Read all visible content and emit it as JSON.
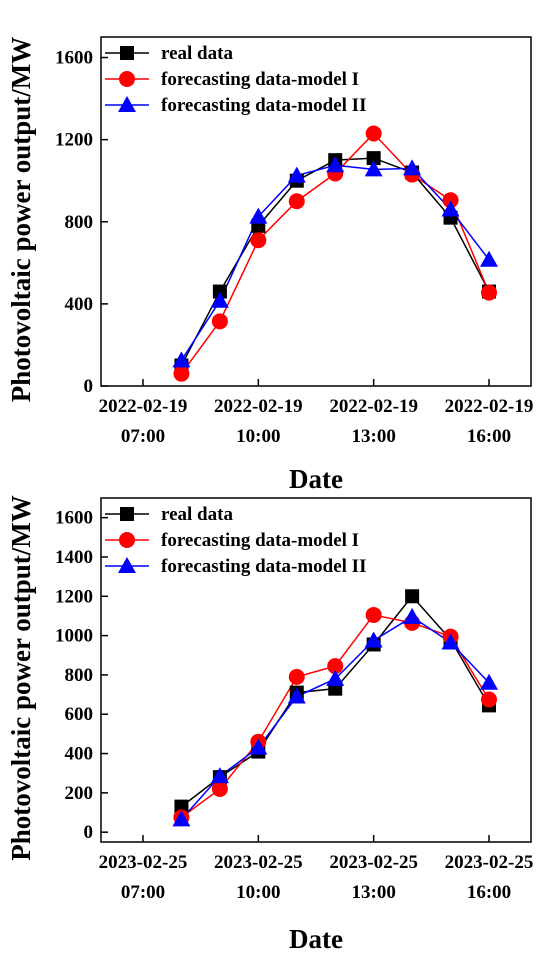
{
  "legend_entries": [
    "real data",
    "forecasting data-model I",
    "forecasting data-model II"
  ],
  "colors": {
    "real": "#000000",
    "model1": "#ff0000",
    "model2": "#0000ff"
  },
  "chart_data": [
    {
      "type": "line",
      "xlabel": "Date",
      "ylabel": "Photovoltaic power output/MW",
      "x": [
        "07:00",
        "08:00",
        "09:00",
        "10:00",
        "11:00",
        "12:00",
        "13:00",
        "14:00",
        "15:00",
        "16:00"
      ],
      "xticks": [
        {
          "x": "07:00",
          "date": "2022-02-19",
          "time": "07:00"
        },
        {
          "x": "10:00",
          "date": "2022-02-19",
          "time": "10:00"
        },
        {
          "x": "13:00",
          "date": "2022-02-19",
          "time": "13:00"
        },
        {
          "x": "16:00",
          "date": "2022-02-19",
          "time": "16:00"
        }
      ],
      "ylim": [
        0,
        1700
      ],
      "yticks": [
        0,
        400,
        800,
        1200,
        1600
      ],
      "legend_position": "top-left",
      "grid": false,
      "series": [
        {
          "name": "real data",
          "marker": "square",
          "color": "#000000",
          "points": [
            [
              "08:00",
              100
            ],
            [
              "09:00",
              460
            ],
            [
              "10:00",
              780
            ],
            [
              "11:00",
              1000
            ],
            [
              "12:00",
              1100
            ],
            [
              "13:00",
              1110
            ],
            [
              "14:00",
              1040
            ],
            [
              "15:00",
              820
            ],
            [
              "16:00",
              460
            ]
          ]
        },
        {
          "name": "forecasting data-model I",
          "marker": "circle",
          "color": "#ff0000",
          "points": [
            [
              "08:00",
              60
            ],
            [
              "09:00",
              315
            ],
            [
              "10:00",
              710
            ],
            [
              "11:00",
              900
            ],
            [
              "12:00",
              1035
            ],
            [
              "13:00",
              1230
            ],
            [
              "14:00",
              1030
            ],
            [
              "15:00",
              905
            ],
            [
              "16:00",
              455
            ]
          ]
        },
        {
          "name": "forecasting data-model II",
          "marker": "triangle",
          "color": "#0000ff",
          "points": [
            [
              "08:00",
              125
            ],
            [
              "09:00",
              415
            ],
            [
              "10:00",
              825
            ],
            [
              "11:00",
              1025
            ],
            [
              "12:00",
              1075
            ],
            [
              "13:00",
              1055
            ],
            [
              "14:00",
              1060
            ],
            [
              "15:00",
              860
            ],
            [
              "16:00",
              615
            ]
          ]
        }
      ]
    },
    {
      "type": "line",
      "xlabel": "Date",
      "ylabel": "Photovoltaic power output/MW",
      "x": [
        "07:00",
        "08:00",
        "09:00",
        "10:00",
        "11:00",
        "12:00",
        "13:00",
        "14:00",
        "15:00",
        "16:00"
      ],
      "xticks": [
        {
          "x": "07:00",
          "date": "2023-02-25",
          "time": "07:00"
        },
        {
          "x": "10:00",
          "date": "2023-02-25",
          "time": "10:00"
        },
        {
          "x": "13:00",
          "date": "2023-02-25",
          "time": "13:00"
        },
        {
          "x": "16:00",
          "date": "2023-02-25",
          "time": "16:00"
        }
      ],
      "ylim": [
        -50,
        1700
      ],
      "yticks": [
        0,
        200,
        400,
        600,
        800,
        1000,
        1200,
        1400,
        1600
      ],
      "legend_position": "top-left",
      "grid": false,
      "series": [
        {
          "name": "real data",
          "marker": "square",
          "color": "#000000",
          "points": [
            [
              "08:00",
              130
            ],
            [
              "09:00",
              280
            ],
            [
              "10:00",
              410
            ],
            [
              "11:00",
              710
            ],
            [
              "12:00",
              730
            ],
            [
              "13:00",
              955
            ],
            [
              "14:00",
              1200
            ],
            [
              "15:00",
              980
            ],
            [
              "16:00",
              645
            ]
          ]
        },
        {
          "name": "forecasting data-model I",
          "marker": "circle",
          "color": "#ff0000",
          "points": [
            [
              "08:00",
              75
            ],
            [
              "09:00",
              220
            ],
            [
              "10:00",
              460
            ],
            [
              "11:00",
              790
            ],
            [
              "12:00",
              845
            ],
            [
              "13:00",
              1105
            ],
            [
              "14:00",
              1065
            ],
            [
              "15:00",
              995
            ],
            [
              "16:00",
              675
            ]
          ]
        },
        {
          "name": "forecasting data-model II",
          "marker": "triangle",
          "color": "#0000ff",
          "points": [
            [
              "08:00",
              65
            ],
            [
              "09:00",
              285
            ],
            [
              "10:00",
              430
            ],
            [
              "11:00",
              690
            ],
            [
              "12:00",
              780
            ],
            [
              "13:00",
              975
            ],
            [
              "14:00",
              1095
            ],
            [
              "15:00",
              965
            ],
            [
              "16:00",
              760
            ]
          ]
        }
      ]
    }
  ]
}
